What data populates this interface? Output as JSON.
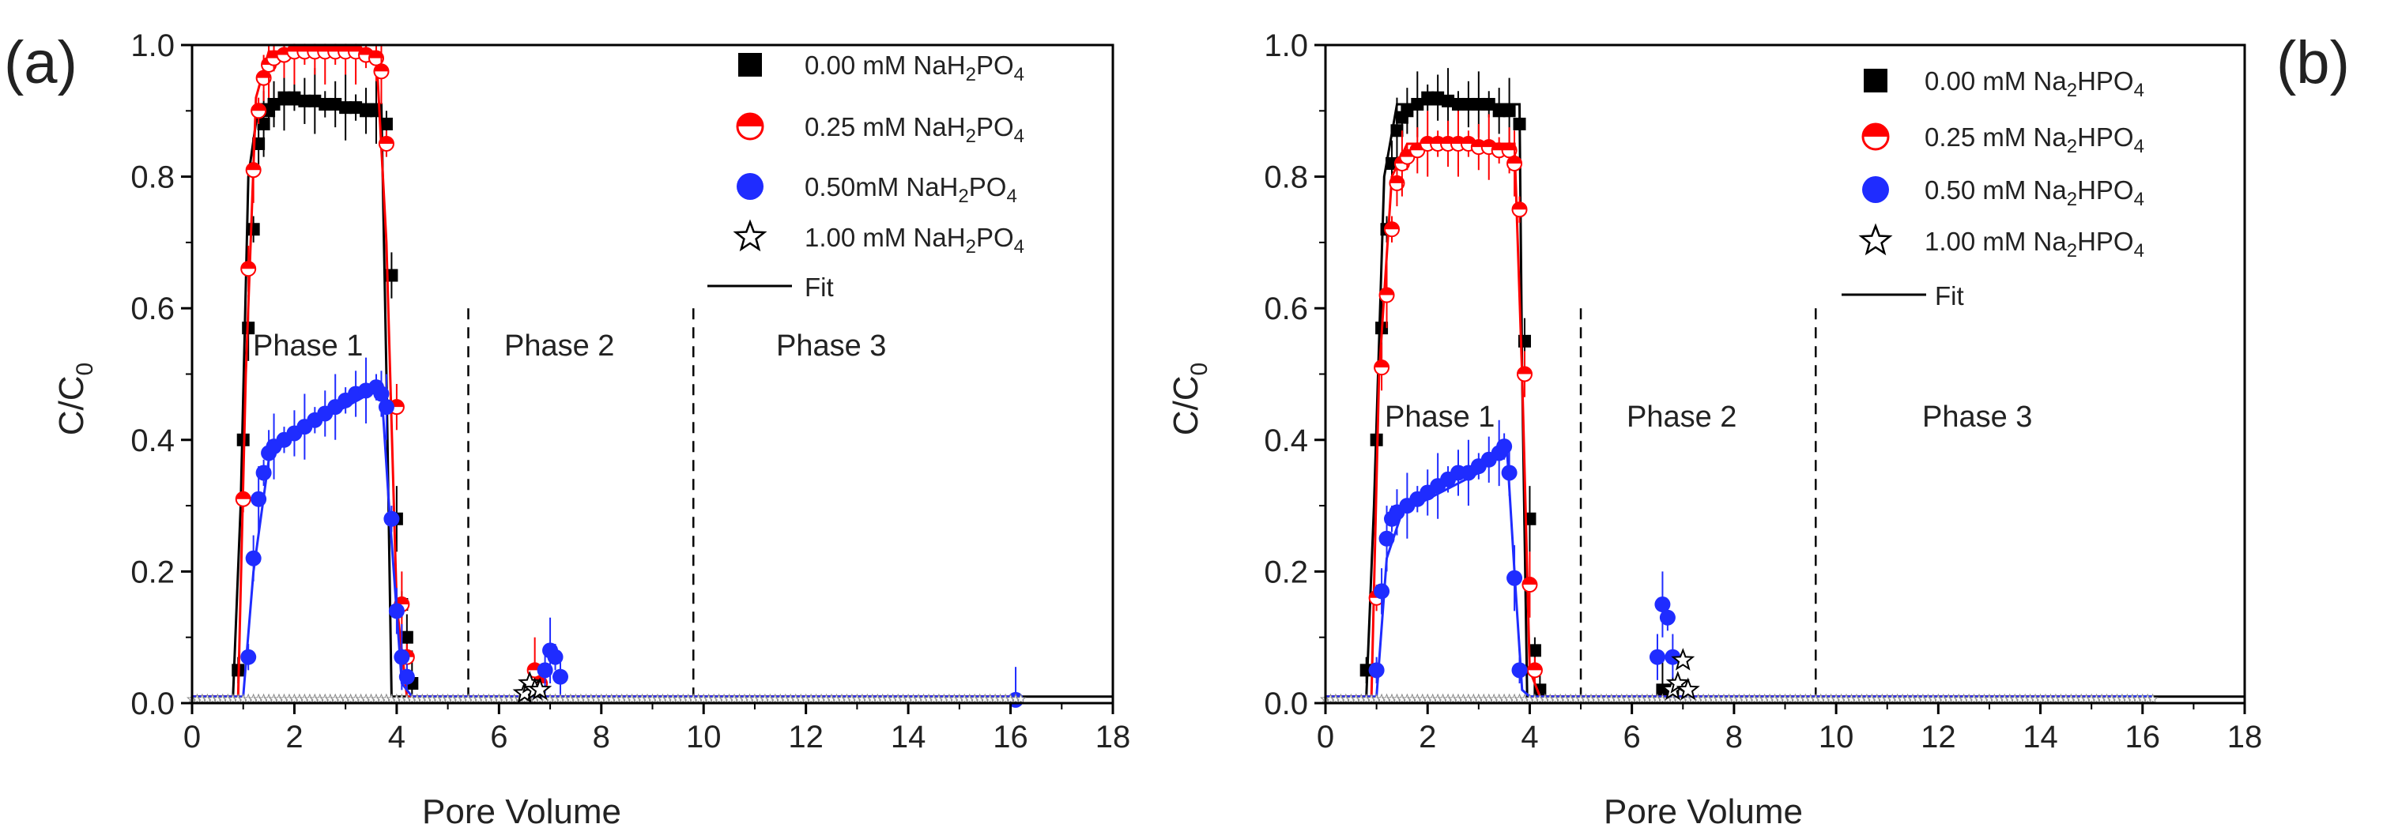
{
  "figure": {
    "panels": [
      {
        "id": "a",
        "panel_label": "(a)",
        "phase_labels": [
          "Phase 1",
          "Phase 2",
          "Phase 3"
        ],
        "phase_boundaries": [
          5.4,
          9.8
        ],
        "legend": {
          "placement": "top-right",
          "entries": [
            {
              "salt": "NaH",
              "sub1": "2",
              "mid": "PO",
              "sub2": "4",
              "prefix": "0.00 mM ",
              "marker": "square",
              "color": "#000000"
            },
            {
              "salt": "NaH",
              "sub1": "2",
              "mid": "PO",
              "sub2": "4",
              "prefix": "0.25 mM ",
              "marker": "half-circle",
              "color": "#ff0000"
            },
            {
              "salt": "NaH",
              "sub1": "2",
              "mid": "PO",
              "sub2": "4",
              "prefix": "0.50mM ",
              "marker": "circle",
              "color": "#1f2cff"
            },
            {
              "salt": "NaH",
              "sub1": "2",
              "mid": "PO",
              "sub2": "4",
              "prefix": "1.00 mM ",
              "marker": "star",
              "color": "#000000"
            }
          ],
          "fit_label": "Fit"
        }
      },
      {
        "id": "b",
        "panel_label": "(b)",
        "phase_labels": [
          "Phase 1",
          "Phase 2",
          "Phase 3"
        ],
        "phase_boundaries": [
          5.0,
          9.6
        ],
        "legend": {
          "placement": "top-right",
          "entries": [
            {
              "salt": "Na",
              "sub1": "2",
              "mid": "HPO",
              "sub2": "4",
              "prefix": "0.00 mM ",
              "marker": "square",
              "color": "#000000"
            },
            {
              "salt": "Na",
              "sub1": "2",
              "mid": "HPO",
              "sub2": "4",
              "prefix": "0.25 mM ",
              "marker": "half-circle",
              "color": "#ff0000"
            },
            {
              "salt": "Na",
              "sub1": "2",
              "mid": "HPO",
              "sub2": "4",
              "prefix": "0.50 mM ",
              "marker": "circle",
              "color": "#1f2cff"
            },
            {
              "salt": "Na",
              "sub1": "2",
              "mid": "HPO",
              "sub2": "4",
              "prefix": "1.00 mM ",
              "marker": "star",
              "color": "#000000"
            }
          ],
          "fit_label": "Fit"
        }
      }
    ]
  },
  "chart_data": [
    {
      "type": "scatter",
      "panel": "(a)",
      "title": "",
      "xlabel": "Pore Volume",
      "ylabel_main": "C/C",
      "ylabel_sub": "0",
      "xlim": [
        0,
        18
      ],
      "ylim": [
        0,
        1.0
      ],
      "xticks": [
        0,
        2,
        4,
        6,
        8,
        10,
        12,
        14,
        16,
        18
      ],
      "yticks": [
        0.0,
        0.2,
        0.4,
        0.6,
        0.8,
        1.0
      ],
      "grid": false,
      "series": [
        {
          "name": "0.00 mM NaH2PO4",
          "marker": "square",
          "color": "#000000",
          "points": [
            [
              0.9,
              0.05
            ],
            [
              1.0,
              0.4
            ],
            [
              1.1,
              0.57
            ],
            [
              1.2,
              0.72
            ],
            [
              1.3,
              0.85
            ],
            [
              1.4,
              0.88
            ],
            [
              1.5,
              0.9
            ],
            [
              1.6,
              0.91
            ],
            [
              1.8,
              0.92
            ],
            [
              2.0,
              0.92
            ],
            [
              2.2,
              0.915
            ],
            [
              2.4,
              0.915
            ],
            [
              2.6,
              0.91
            ],
            [
              2.8,
              0.91
            ],
            [
              3.0,
              0.905
            ],
            [
              3.2,
              0.905
            ],
            [
              3.4,
              0.9
            ],
            [
              3.6,
              0.9
            ],
            [
              3.8,
              0.88
            ],
            [
              3.9,
              0.65
            ],
            [
              4.0,
              0.28
            ],
            [
              4.1,
              0.15
            ],
            [
              4.2,
              0.1
            ],
            [
              4.3,
              0.03
            ]
          ],
          "fit": [
            [
              0,
              0.01
            ],
            [
              0.8,
              0.01
            ],
            [
              0.95,
              0.3
            ],
            [
              1.1,
              0.8
            ],
            [
              1.3,
              0.91
            ],
            [
              3.7,
              0.91
            ],
            [
              3.8,
              0.5
            ],
            [
              3.9,
              0.01
            ],
            [
              18,
              0.01
            ]
          ]
        },
        {
          "name": "0.25 mM NaH2PO4",
          "marker": "half-circle",
          "color": "#ff0000",
          "points": [
            [
              1.0,
              0.31
            ],
            [
              1.1,
              0.66
            ],
            [
              1.2,
              0.81
            ],
            [
              1.3,
              0.9
            ],
            [
              1.4,
              0.95
            ],
            [
              1.5,
              0.97
            ],
            [
              1.6,
              0.98
            ],
            [
              1.8,
              0.985
            ],
            [
              2.0,
              0.99
            ],
            [
              2.2,
              0.99
            ],
            [
              2.4,
              0.99
            ],
            [
              2.6,
              0.99
            ],
            [
              2.8,
              0.99
            ],
            [
              3.0,
              0.99
            ],
            [
              3.2,
              0.99
            ],
            [
              3.4,
              0.985
            ],
            [
              3.6,
              0.98
            ],
            [
              3.7,
              0.96
            ],
            [
              3.8,
              0.85
            ],
            [
              4.0,
              0.45
            ],
            [
              4.1,
              0.15
            ],
            [
              4.2,
              0.07
            ],
            [
              6.6,
              0.02
            ],
            [
              6.7,
              0.05
            ],
            [
              6.8,
              0.03
            ]
          ],
          "fit": [
            [
              0,
              0.01
            ],
            [
              0.9,
              0.01
            ],
            [
              1.05,
              0.5
            ],
            [
              1.25,
              0.92
            ],
            [
              1.5,
              0.99
            ],
            [
              3.6,
              0.99
            ],
            [
              3.8,
              0.7
            ],
            [
              4.0,
              0.15
            ],
            [
              4.2,
              0.01
            ],
            [
              16,
              0.01
            ]
          ]
        },
        {
          "name": "0.50mM NaH2PO4",
          "marker": "circle",
          "color": "#1f2cff",
          "points": [
            [
              1.1,
              0.07
            ],
            [
              1.2,
              0.22
            ],
            [
              1.3,
              0.31
            ],
            [
              1.4,
              0.35
            ],
            [
              1.5,
              0.38
            ],
            [
              1.6,
              0.39
            ],
            [
              1.8,
              0.4
            ],
            [
              2.0,
              0.41
            ],
            [
              2.2,
              0.42
            ],
            [
              2.4,
              0.43
            ],
            [
              2.6,
              0.44
            ],
            [
              2.8,
              0.45
            ],
            [
              3.0,
              0.46
            ],
            [
              3.2,
              0.47
            ],
            [
              3.4,
              0.475
            ],
            [
              3.6,
              0.48
            ],
            [
              3.7,
              0.47
            ],
            [
              3.8,
              0.45
            ],
            [
              3.9,
              0.28
            ],
            [
              4.0,
              0.14
            ],
            [
              4.1,
              0.07
            ],
            [
              4.2,
              0.04
            ],
            [
              6.9,
              0.05
            ],
            [
              7.0,
              0.08
            ],
            [
              7.1,
              0.07
            ],
            [
              7.2,
              0.04
            ],
            [
              16.1,
              0.005
            ]
          ],
          "fit": [
            [
              0,
              0.01
            ],
            [
              1.0,
              0.01
            ],
            [
              1.2,
              0.2
            ],
            [
              1.5,
              0.37
            ],
            [
              2.0,
              0.41
            ],
            [
              3.0,
              0.45
            ],
            [
              3.7,
              0.48
            ],
            [
              3.85,
              0.3
            ],
            [
              4.1,
              0.03
            ],
            [
              4.3,
              0.01
            ],
            [
              16,
              0.01
            ]
          ]
        },
        {
          "name": "1.00 mM NaH2PO4",
          "marker": "star",
          "color": "#000000",
          "points": [
            [
              6.5,
              0.015
            ],
            [
              6.6,
              0.03
            ],
            [
              6.7,
              0.02
            ],
            [
              6.8,
              0.02
            ]
          ],
          "baseline_range": [
            0,
            16.2
          ]
        }
      ]
    },
    {
      "type": "scatter",
      "panel": "(b)",
      "title": "",
      "xlabel": "Pore Volume",
      "ylabel_main": "C/C",
      "ylabel_sub": "0",
      "xlim": [
        0,
        18
      ],
      "ylim": [
        0,
        1.0
      ],
      "xticks": [
        0,
        2,
        4,
        6,
        8,
        10,
        12,
        14,
        16,
        18
      ],
      "yticks": [
        0.0,
        0.2,
        0.4,
        0.6,
        0.8,
        1.0
      ],
      "grid": false,
      "series": [
        {
          "name": "0.00 mM Na2HPO4",
          "marker": "square",
          "color": "#000000",
          "points": [
            [
              0.8,
              0.05
            ],
            [
              1.0,
              0.4
            ],
            [
              1.1,
              0.57
            ],
            [
              1.2,
              0.72
            ],
            [
              1.3,
              0.82
            ],
            [
              1.4,
              0.87
            ],
            [
              1.5,
              0.89
            ],
            [
              1.6,
              0.9
            ],
            [
              1.8,
              0.91
            ],
            [
              2.0,
              0.92
            ],
            [
              2.2,
              0.92
            ],
            [
              2.4,
              0.915
            ],
            [
              2.6,
              0.91
            ],
            [
              2.8,
              0.91
            ],
            [
              3.0,
              0.91
            ],
            [
              3.2,
              0.91
            ],
            [
              3.4,
              0.9
            ],
            [
              3.6,
              0.9
            ],
            [
              3.8,
              0.88
            ],
            [
              3.9,
              0.55
            ],
            [
              4.0,
              0.28
            ],
            [
              4.1,
              0.08
            ],
            [
              4.2,
              0.02
            ],
            [
              6.6,
              0.02
            ],
            [
              6.8,
              0.02
            ]
          ],
          "fit": [
            [
              0,
              0.01
            ],
            [
              0.8,
              0.01
            ],
            [
              0.95,
              0.3
            ],
            [
              1.15,
              0.8
            ],
            [
              1.4,
              0.91
            ],
            [
              3.8,
              0.91
            ],
            [
              3.85,
              0.5
            ],
            [
              3.95,
              0.01
            ],
            [
              18,
              0.01
            ]
          ]
        },
        {
          "name": "0.25 mM Na2HPO4",
          "marker": "half-circle",
          "color": "#ff0000",
          "points": [
            [
              1.0,
              0.16
            ],
            [
              1.1,
              0.51
            ],
            [
              1.2,
              0.62
            ],
            [
              1.3,
              0.72
            ],
            [
              1.4,
              0.79
            ],
            [
              1.5,
              0.82
            ],
            [
              1.6,
              0.83
            ],
            [
              1.8,
              0.84
            ],
            [
              2.0,
              0.85
            ],
            [
              2.2,
              0.85
            ],
            [
              2.4,
              0.85
            ],
            [
              2.6,
              0.85
            ],
            [
              2.8,
              0.85
            ],
            [
              3.0,
              0.845
            ],
            [
              3.2,
              0.845
            ],
            [
              3.4,
              0.84
            ],
            [
              3.6,
              0.84
            ],
            [
              3.7,
              0.82
            ],
            [
              3.8,
              0.75
            ],
            [
              3.9,
              0.5
            ],
            [
              4.0,
              0.18
            ],
            [
              4.1,
              0.05
            ]
          ],
          "fit": [
            [
              0,
              0.01
            ],
            [
              0.9,
              0.01
            ],
            [
              1.05,
              0.5
            ],
            [
              1.3,
              0.8
            ],
            [
              1.6,
              0.85
            ],
            [
              3.7,
              0.85
            ],
            [
              3.85,
              0.5
            ],
            [
              4.0,
              0.05
            ],
            [
              4.2,
              0.01
            ],
            [
              15.5,
              0.01
            ]
          ]
        },
        {
          "name": "0.50 mM Na2HPO4",
          "marker": "circle",
          "color": "#1f2cff",
          "points": [
            [
              1.0,
              0.05
            ],
            [
              1.1,
              0.17
            ],
            [
              1.2,
              0.25
            ],
            [
              1.3,
              0.28
            ],
            [
              1.4,
              0.29
            ],
            [
              1.6,
              0.3
            ],
            [
              1.8,
              0.31
            ],
            [
              2.0,
              0.32
            ],
            [
              2.2,
              0.33
            ],
            [
              2.4,
              0.34
            ],
            [
              2.6,
              0.35
            ],
            [
              2.8,
              0.35
            ],
            [
              3.0,
              0.36
            ],
            [
              3.2,
              0.37
            ],
            [
              3.4,
              0.38
            ],
            [
              3.5,
              0.39
            ],
            [
              3.6,
              0.35
            ],
            [
              3.7,
              0.19
            ],
            [
              3.8,
              0.05
            ],
            [
              6.5,
              0.07
            ],
            [
              6.6,
              0.15
            ],
            [
              6.7,
              0.13
            ],
            [
              6.8,
              0.07
            ]
          ],
          "fit": [
            [
              0,
              0.01
            ],
            [
              1.0,
              0.01
            ],
            [
              1.2,
              0.22
            ],
            [
              1.5,
              0.29
            ],
            [
              2.0,
              0.31
            ],
            [
              3.0,
              0.35
            ],
            [
              3.55,
              0.39
            ],
            [
              3.7,
              0.2
            ],
            [
              3.85,
              0.02
            ],
            [
              4.0,
              0.01
            ],
            [
              16.2,
              0.01
            ]
          ]
        },
        {
          "name": "1.00 mM Na2HPO4",
          "marker": "star",
          "color": "#000000",
          "points": [
            [
              6.8,
              0.02
            ],
            [
              6.9,
              0.03
            ],
            [
              7.0,
              0.065
            ],
            [
              7.1,
              0.02
            ]
          ],
          "baseline_range": [
            0,
            16.2
          ]
        }
      ]
    }
  ]
}
